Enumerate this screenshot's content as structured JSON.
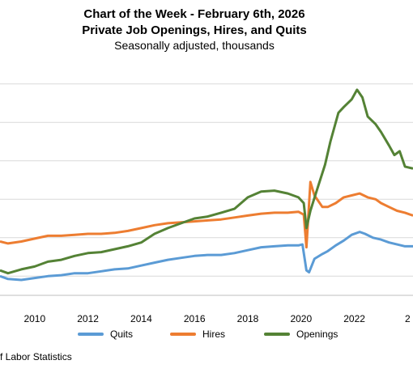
{
  "chart_data": {
    "type": "line",
    "title": "Chart of the Week - February 6th, 2026",
    "subtitle": "Private Job Openings, Hires, and Quits",
    "subtitle2": "Seasonally adjusted, thousands",
    "source": "f Labor Statistics",
    "x_ticks": [
      "2010",
      "2012",
      "2014",
      "2016",
      "2018",
      "2020",
      "2022",
      "2"
    ],
    "xlim": [
      2008.7,
      2024.2
    ],
    "ylim": [
      1000,
      13000
    ],
    "grid": true,
    "legend": "bottom",
    "series": [
      {
        "name": "Quits",
        "color": "#5b9bd5",
        "points": [
          [
            2008.7,
            2000
          ],
          [
            2009.0,
            1850
          ],
          [
            2009.5,
            1800
          ],
          [
            2010.0,
            1900
          ],
          [
            2010.5,
            2000
          ],
          [
            2011.0,
            2050
          ],
          [
            2011.5,
            2150
          ],
          [
            2012.0,
            2150
          ],
          [
            2012.5,
            2250
          ],
          [
            2013.0,
            2350
          ],
          [
            2013.5,
            2400
          ],
          [
            2014.0,
            2550
          ],
          [
            2014.5,
            2700
          ],
          [
            2015.0,
            2850
          ],
          [
            2015.5,
            2950
          ],
          [
            2016.0,
            3050
          ],
          [
            2016.5,
            3100
          ],
          [
            2017.0,
            3100
          ],
          [
            2017.5,
            3200
          ],
          [
            2018.0,
            3350
          ],
          [
            2018.5,
            3500
          ],
          [
            2019.0,
            3550
          ],
          [
            2019.5,
            3600
          ],
          [
            2019.9,
            3600
          ],
          [
            2020.05,
            3650
          ],
          [
            2020.2,
            2300
          ],
          [
            2020.3,
            2200
          ],
          [
            2020.5,
            2900
          ],
          [
            2020.8,
            3150
          ],
          [
            2021.0,
            3300
          ],
          [
            2021.3,
            3600
          ],
          [
            2021.6,
            3850
          ],
          [
            2021.9,
            4150
          ],
          [
            2022.2,
            4300
          ],
          [
            2022.4,
            4200
          ],
          [
            2022.7,
            4000
          ],
          [
            2023.0,
            3900
          ],
          [
            2023.3,
            3750
          ],
          [
            2023.6,
            3650
          ],
          [
            2023.9,
            3550
          ],
          [
            2024.2,
            3550
          ]
        ]
      },
      {
        "name": "Hires",
        "color": "#ed7d31",
        "points": [
          [
            2008.7,
            3800
          ],
          [
            2009.0,
            3700
          ],
          [
            2009.5,
            3800
          ],
          [
            2010.0,
            3950
          ],
          [
            2010.5,
            4100
          ],
          [
            2011.0,
            4100
          ],
          [
            2011.5,
            4150
          ],
          [
            2012.0,
            4200
          ],
          [
            2012.5,
            4200
          ],
          [
            2013.0,
            4250
          ],
          [
            2013.5,
            4350
          ],
          [
            2014.0,
            4500
          ],
          [
            2014.5,
            4650
          ],
          [
            2015.0,
            4750
          ],
          [
            2015.5,
            4800
          ],
          [
            2016.0,
            4850
          ],
          [
            2016.5,
            4900
          ],
          [
            2017.0,
            4950
          ],
          [
            2017.5,
            5050
          ],
          [
            2018.0,
            5150
          ],
          [
            2018.5,
            5250
          ],
          [
            2019.0,
            5300
          ],
          [
            2019.5,
            5300
          ],
          [
            2019.9,
            5350
          ],
          [
            2020.1,
            5200
          ],
          [
            2020.2,
            3500
          ],
          [
            2020.35,
            6900
          ],
          [
            2020.5,
            6200
          ],
          [
            2020.8,
            5600
          ],
          [
            2021.0,
            5600
          ],
          [
            2021.3,
            5800
          ],
          [
            2021.6,
            6100
          ],
          [
            2021.9,
            6200
          ],
          [
            2022.2,
            6300
          ],
          [
            2022.5,
            6100
          ],
          [
            2022.8,
            6000
          ],
          [
            2023.0,
            5800
          ],
          [
            2023.3,
            5600
          ],
          [
            2023.6,
            5400
          ],
          [
            2023.9,
            5300
          ],
          [
            2024.2,
            5150
          ]
        ]
      },
      {
        "name": "Openings",
        "color": "#548235",
        "points": [
          [
            2008.7,
            2300
          ],
          [
            2009.0,
            2150
          ],
          [
            2009.5,
            2350
          ],
          [
            2010.0,
            2500
          ],
          [
            2010.5,
            2750
          ],
          [
            2011.0,
            2850
          ],
          [
            2011.5,
            3050
          ],
          [
            2012.0,
            3200
          ],
          [
            2012.5,
            3250
          ],
          [
            2013.0,
            3400
          ],
          [
            2013.5,
            3550
          ],
          [
            2014.0,
            3750
          ],
          [
            2014.5,
            4200
          ],
          [
            2015.0,
            4500
          ],
          [
            2015.5,
            4750
          ],
          [
            2016.0,
            5000
          ],
          [
            2016.5,
            5100
          ],
          [
            2017.0,
            5300
          ],
          [
            2017.5,
            5500
          ],
          [
            2018.0,
            6100
          ],
          [
            2018.5,
            6400
          ],
          [
            2019.0,
            6450
          ],
          [
            2019.5,
            6300
          ],
          [
            2019.9,
            6100
          ],
          [
            2020.1,
            5800
          ],
          [
            2020.2,
            4500
          ],
          [
            2020.35,
            5400
          ],
          [
            2020.6,
            6500
          ],
          [
            2020.9,
            7800
          ],
          [
            2021.1,
            9000
          ],
          [
            2021.4,
            10500
          ],
          [
            2021.6,
            10800
          ],
          [
            2021.9,
            11200
          ],
          [
            2022.1,
            11700
          ],
          [
            2022.3,
            11300
          ],
          [
            2022.5,
            10300
          ],
          [
            2022.8,
            9900
          ],
          [
            2023.0,
            9500
          ],
          [
            2023.3,
            8800
          ],
          [
            2023.5,
            8300
          ],
          [
            2023.7,
            8500
          ],
          [
            2023.9,
            7700
          ],
          [
            2024.2,
            7600
          ]
        ]
      }
    ]
  }
}
